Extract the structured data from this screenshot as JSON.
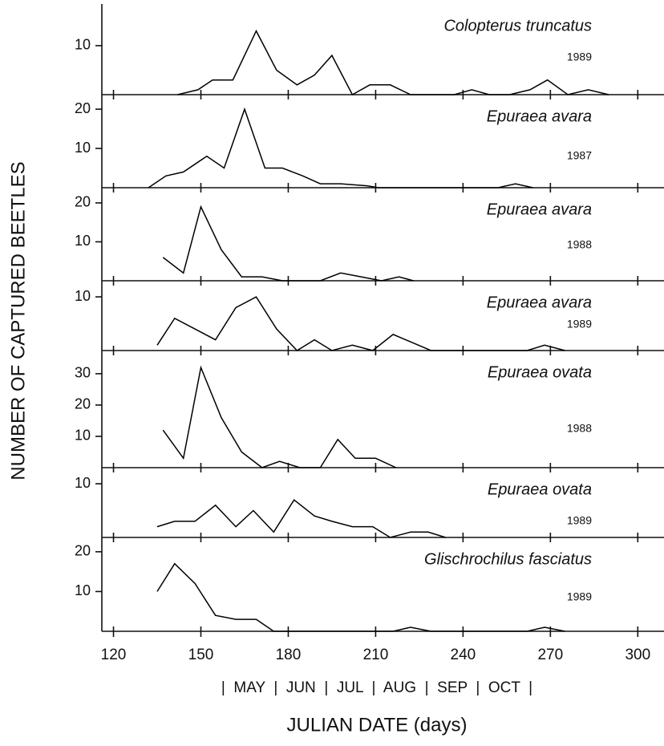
{
  "chart_data": [
    {
      "type": "line",
      "title": "Colopterus truncatus",
      "subtitle": "1989",
      "color": "#000000",
      "x": [
        142,
        149,
        154,
        161,
        169,
        176,
        183,
        189,
        195,
        202,
        208,
        215,
        222,
        237,
        243,
        249,
        256,
        263,
        269,
        276,
        283,
        290
      ],
      "values": [
        0,
        1,
        3,
        3,
        13,
        5,
        2,
        4,
        8,
        0,
        2,
        2,
        0,
        0,
        1,
        0,
        0,
        1,
        3,
        0,
        1,
        0
      ],
      "ylim": [
        0,
        18.5
      ],
      "yticks": [
        10
      ]
    },
    {
      "type": "line",
      "title": "Epuraea avara",
      "subtitle": "1987",
      "color": "#000000",
      "x": [
        132,
        138,
        144,
        152,
        158,
        165,
        172,
        178,
        185,
        191,
        198,
        207,
        211,
        252,
        258,
        264
      ],
      "values": [
        0,
        3,
        4,
        8,
        5,
        20,
        5,
        5,
        3,
        1,
        1,
        0.5,
        0,
        0,
        1,
        0
      ],
      "ylim": [
        0,
        23.7
      ],
      "yticks": [
        10,
        20
      ]
    },
    {
      "type": "line",
      "title": "Epuraea avara",
      "subtitle": "1988",
      "color": "#000000",
      "x": [
        137,
        144,
        150,
        157,
        164,
        171,
        178,
        191,
        198,
        205,
        212,
        218,
        223
      ],
      "values": [
        6,
        2,
        19,
        8,
        1,
        1,
        0,
        0,
        2,
        1,
        0,
        1,
        0
      ],
      "ylim": [
        0,
        23.9
      ],
      "yticks": [
        10,
        20
      ]
    },
    {
      "type": "line",
      "title": "Epuraea avara",
      "subtitle": "1989",
      "color": "#000000",
      "x": [
        135,
        141,
        148,
        155,
        162,
        169,
        176,
        183,
        189,
        195,
        202,
        209,
        216,
        229,
        262,
        268,
        275
      ],
      "values": [
        1,
        6,
        4,
        2,
        8,
        10,
        4,
        0,
        2,
        0,
        1,
        0,
        3,
        0,
        0,
        1,
        0
      ],
      "ylim": [
        0,
        13
      ],
      "yticks": [
        10
      ]
    },
    {
      "type": "line",
      "title": "Epuraea ovata",
      "subtitle": "1988",
      "color": "#000000",
      "x": [
        137,
        144,
        150,
        157,
        164,
        171,
        177,
        184,
        191,
        197,
        203,
        210,
        217
      ],
      "values": [
        12,
        3,
        32,
        16,
        5,
        0,
        2,
        0,
        0,
        9,
        3,
        3,
        0
      ],
      "ylim": [
        0,
        37.4
      ],
      "yticks": [
        10,
        20,
        30
      ]
    },
    {
      "type": "line",
      "title": "Epuraea ovata",
      "subtitle": "1989",
      "color": "#000000",
      "x": [
        135,
        141,
        148,
        155,
        162,
        168,
        175,
        182,
        189,
        195,
        202,
        209,
        215,
        222,
        228,
        234
      ],
      "values": [
        2,
        3,
        3,
        6,
        2,
        5,
        1,
        7,
        4,
        3,
        2,
        2,
        0,
        1,
        1,
        0
      ],
      "ylim": [
        0,
        13
      ],
      "yticks": [
        10
      ]
    },
    {
      "type": "line",
      "title": "Glischrochilus fasciatus",
      "subtitle": "1989",
      "color": "#000000",
      "x": [
        135,
        141,
        148,
        155,
        162,
        169,
        175,
        216,
        222,
        229,
        262,
        268,
        275
      ],
      "values": [
        10,
        17,
        12,
        4,
        3,
        3,
        0,
        0,
        1,
        0,
        0,
        1,
        0
      ],
      "ylim": [
        0,
        23.6
      ],
      "yticks": [
        10,
        20
      ]
    }
  ],
  "x_axis": {
    "xlim": [
      116,
      309
    ],
    "xticks": [
      120,
      150,
      180,
      210,
      240,
      270,
      300
    ],
    "months": "|  MAY  |  JUN  |  JUL  |  AUG  |  SEP  |  OCT  |",
    "label": "JULIAN DATE (days)"
  },
  "y_axis": {
    "label": "NUMBER OF CAPTURED BEETLES"
  }
}
